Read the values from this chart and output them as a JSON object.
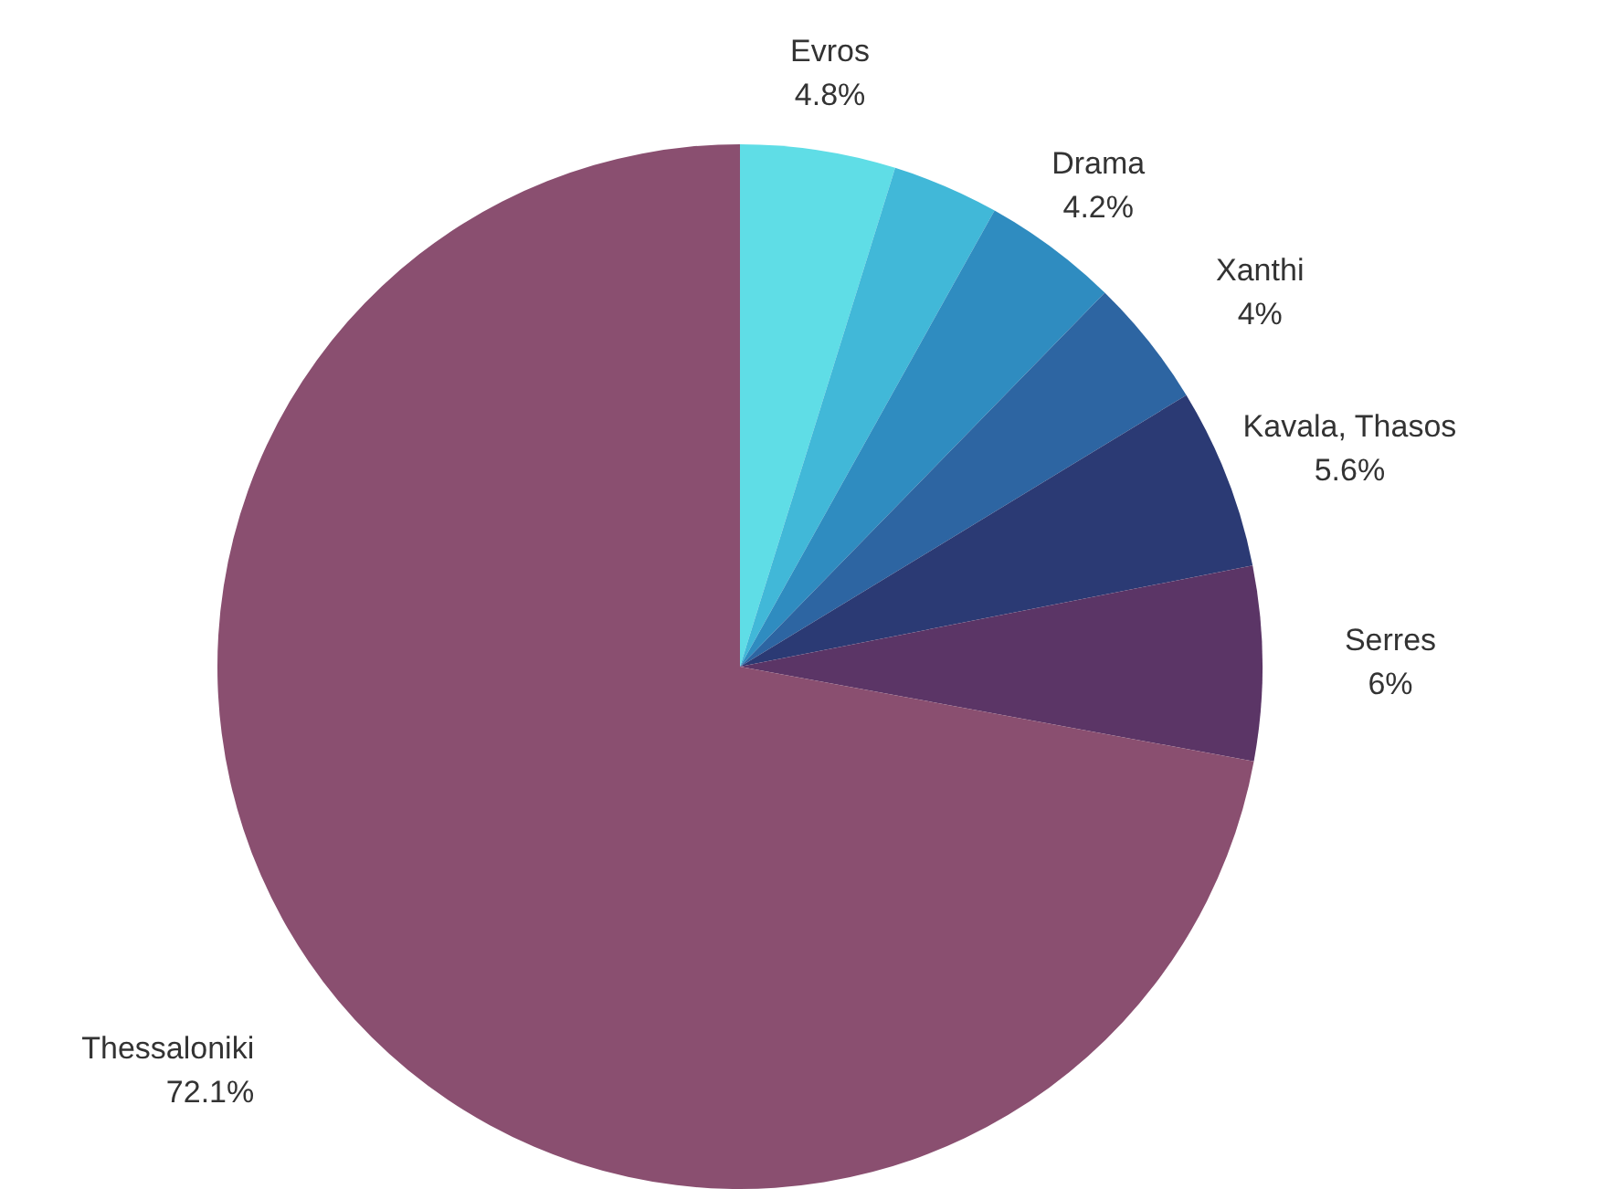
{
  "chart_data": {
    "type": "pie",
    "categories": [
      "Evros",
      null,
      "Drama",
      "Xanthi",
      "Kavala, Thasos",
      "Serres",
      "Thessaloniki"
    ],
    "values": [
      4.8,
      3.3,
      4.2,
      4,
      5.6,
      6,
      72.1
    ],
    "value_labels": [
      "4.8%",
      null,
      "4.2%",
      "4%",
      "5.6%",
      "6%",
      "72.1%"
    ],
    "colors": [
      "#5fdde6",
      "#41b8d8",
      "#2f8cc0",
      "#2d65a2",
      "#2b3a74",
      "#5b3566",
      "#8a4f70"
    ],
    "legend": false
  }
}
